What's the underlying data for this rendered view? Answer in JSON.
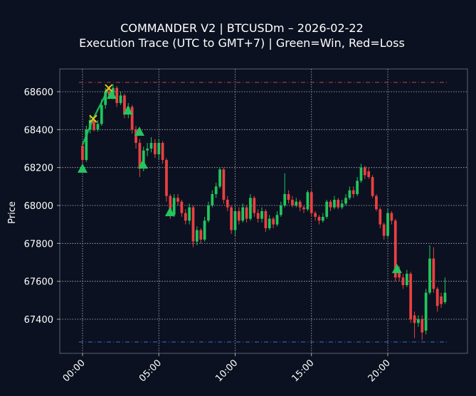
{
  "chart_data": {
    "type": "candlestick",
    "title": "COMMANDER V2 | BTCUSDm – 2026-02-22",
    "subtitle": "Execution Trace (UTC to GMT+7) | Green=Win, Red=Loss",
    "y_label": "Price",
    "xlim": [
      -1.49,
      25.22
    ],
    "ylim": [
      67220,
      68720
    ],
    "xticks": [
      {
        "value": 0,
        "label": "00:00"
      },
      {
        "value": 5,
        "label": "05:00"
      },
      {
        "value": 10,
        "label": "10:00"
      },
      {
        "value": 15,
        "label": "15:00"
      },
      {
        "value": 20,
        "label": "20:00"
      }
    ],
    "yticks": [
      67400,
      67600,
      67800,
      68000,
      68200,
      68400,
      68600
    ],
    "grid": true,
    "up_color": "#22c55e",
    "down_color": "#e84142",
    "x": [
      0,
      0.25,
      0.5,
      0.75,
      1,
      1.25,
      1.5,
      1.75,
      2,
      2.25,
      2.5,
      2.75,
      3,
      3.25,
      3.5,
      3.75,
      4,
      4.25,
      4.5,
      4.75,
      5,
      5.25,
      5.5,
      5.75,
      6,
      6.25,
      6.5,
      6.75,
      7,
      7.25,
      7.5,
      7.75,
      8,
      8.25,
      8.5,
      8.75,
      9,
      9.25,
      9.5,
      9.75,
      10,
      10.25,
      10.5,
      10.75,
      11,
      11.25,
      11.5,
      11.75,
      12,
      12.25,
      12.5,
      12.75,
      13,
      13.25,
      13.5,
      13.75,
      14,
      14.25,
      14.5,
      14.75,
      15,
      15.25,
      15.5,
      15.75,
      16,
      16.25,
      16.5,
      16.75,
      17,
      17.25,
      17.5,
      17.75,
      18,
      18.25,
      18.5,
      18.75,
      19,
      19.25,
      19.5,
      19.75,
      20,
      20.25,
      20.5,
      20.75,
      21,
      21.25,
      21.5,
      21.75,
      22,
      22.25,
      22.5,
      22.75,
      23,
      23.25,
      23.5,
      23.75
    ],
    "open": [
      68315,
      68240,
      68400,
      68450,
      68400,
      68430,
      68530,
      68600,
      68580,
      68620,
      68540,
      68580,
      68480,
      68520,
      68400,
      68330,
      68200,
      68290,
      68300,
      68330,
      68270,
      68330,
      68240,
      68050,
      67950,
      68040,
      68020,
      67960,
      67920,
      67990,
      67810,
      67870,
      67820,
      67920,
      68000,
      68060,
      68100,
      68190,
      68030,
      67990,
      67870,
      67970,
      67920,
      67990,
      67930,
      68040,
      67960,
      67930,
      67970,
      67880,
      67930,
      67900,
      67950,
      68000,
      68060,
      68030,
      68000,
      68020,
      67990,
      67980,
      68070,
      67960,
      67940,
      67920,
      67940,
      68020,
      67990,
      68030,
      67990,
      68010,
      68040,
      68080,
      68060,
      68130,
      68200,
      68180,
      68150,
      68050,
      67980,
      67900,
      67840,
      67960,
      67920,
      67650,
      67620,
      67580,
      67640,
      67420,
      67380,
      67400,
      67340,
      67540,
      67720,
      67560,
      67520,
      67490
    ],
    "high": [
      68330,
      68420,
      68470,
      68470,
      68450,
      68560,
      68620,
      68630,
      68640,
      68630,
      68600,
      68590,
      68540,
      68530,
      68420,
      68350,
      68310,
      68330,
      68360,
      68350,
      68350,
      68340,
      68250,
      68060,
      68060,
      68060,
      68030,
      67980,
      68010,
      68000,
      67890,
      67880,
      67940,
      68020,
      68080,
      68120,
      68200,
      68200,
      68050,
      68000,
      67990,
      67990,
      68010,
      68000,
      68060,
      68050,
      67980,
      67990,
      67980,
      67950,
      67940,
      67970,
      68020,
      68170,
      68080,
      68050,
      68040,
      68030,
      68000,
      68080,
      68080,
      67970,
      67950,
      67960,
      68030,
      68030,
      68050,
      68040,
      68030,
      68060,
      68100,
      68100,
      68150,
      68220,
      68210,
      68200,
      68160,
      68060,
      67990,
      67910,
      67980,
      67970,
      67930,
      67680,
      67640,
      67660,
      67650,
      67440,
      67420,
      67420,
      67560,
      67790,
      67780,
      67570,
      67540,
      67620
    ],
    "low": [
      68200,
      68230,
      68380,
      68390,
      68390,
      68420,
      68510,
      68560,
      68560,
      68520,
      68530,
      68460,
      68460,
      68380,
      68300,
      68150,
      68180,
      68260,
      68280,
      68250,
      68240,
      68220,
      68020,
      67930,
      67940,
      68000,
      67940,
      67900,
      67900,
      67780,
      67790,
      67800,
      67810,
      67910,
      67990,
      68040,
      68090,
      68010,
      67970,
      67850,
      67840,
      67900,
      67910,
      67910,
      67920,
      67940,
      67910,
      67910,
      67860,
      67870,
      67880,
      67890,
      67940,
      67990,
      68010,
      67990,
      67990,
      67970,
      67960,
      67970,
      67940,
      67920,
      67900,
      67910,
      67930,
      67970,
      67980,
      67980,
      67980,
      68000,
      68030,
      68040,
      68050,
      68120,
      68140,
      68140,
      68040,
      67970,
      67880,
      67820,
      67830,
      67900,
      67600,
      67600,
      67560,
      67570,
      67380,
      67300,
      67360,
      67290,
      67320,
      67530,
      67540,
      67440,
      67460,
      67480
    ],
    "close": [
      68240,
      68400,
      68450,
      68400,
      68430,
      68530,
      68600,
      68580,
      68620,
      68540,
      68580,
      68480,
      68520,
      68400,
      68330,
      68200,
      68290,
      68300,
      68330,
      68270,
      68330,
      68240,
      68050,
      67950,
      68040,
      68020,
      67960,
      67920,
      67990,
      67810,
      67870,
      67820,
      67920,
      68000,
      68060,
      68100,
      68190,
      68030,
      67990,
      67870,
      67970,
      67920,
      67990,
      67930,
      68040,
      67960,
      67930,
      67970,
      67880,
      67930,
      67900,
      67950,
      68000,
      68060,
      68030,
      68000,
      68020,
      67990,
      67980,
      68070,
      67960,
      67940,
      67920,
      67940,
      68020,
      67990,
      68030,
      67990,
      68010,
      68040,
      68080,
      68060,
      68130,
      68200,
      68160,
      68150,
      68050,
      67980,
      67900,
      67840,
      67960,
      67920,
      67620,
      67620,
      67580,
      67640,
      67400,
      67380,
      67400,
      67330,
      67540,
      67720,
      67560,
      67470,
      67480,
      67540
    ],
    "hlines": [
      {
        "y": 68649,
        "color": "#c0444a"
      },
      {
        "y": 67280,
        "color": "#3b6fd1"
      }
    ],
    "trace": {
      "x": [
        0,
        0.7,
        1.72
      ],
      "y": [
        68320,
        68457,
        68619
      ],
      "color": "#22c55e"
    },
    "wins": {
      "x": [
        0,
        1.91,
        2.98,
        3.73,
        3.96,
        5.73,
        20.6
      ],
      "y": [
        68195,
        68585,
        68502,
        68390,
        68217,
        67966,
        67666
      ],
      "color": "#22c55e"
    },
    "entries": {
      "x": [
        0.7,
        1.72
      ],
      "y": [
        68457,
        68619
      ],
      "color": "#e6c619"
    }
  }
}
